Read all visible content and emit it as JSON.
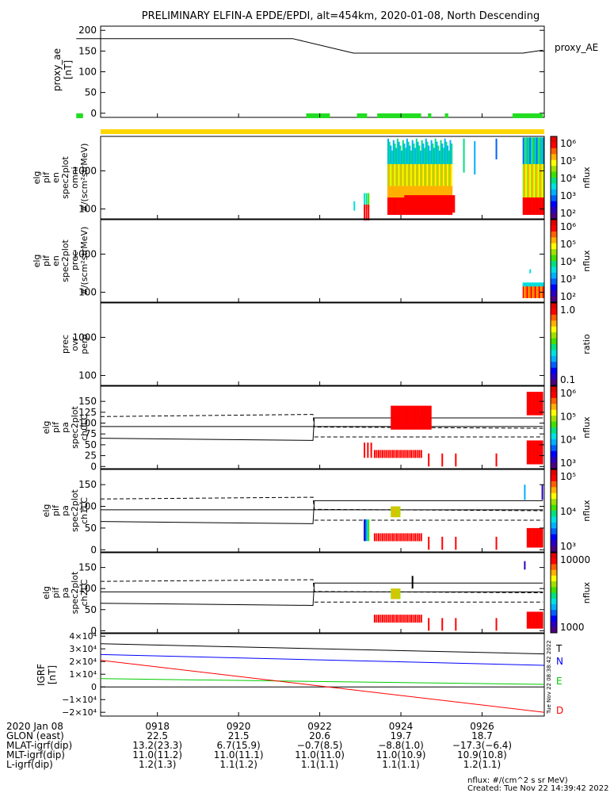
{
  "title": "PRELIMINARY ELFIN-A EPDE/EPDI, alt=454km, 2020-01-08, North Descending",
  "chart_data": [
    {
      "type": "line",
      "id": "proxy_ae",
      "ylabel": [
        "proxy_ae",
        "[nT]"
      ],
      "legend": "proxy_AE",
      "ylim": [
        -10,
        210
      ],
      "yticks": [
        0,
        50,
        100,
        150,
        200
      ],
      "x": [
        "09:16:00",
        "09:20:00",
        "09:21:20",
        "09:22:50",
        "09:27:00",
        "09:27:30"
      ],
      "values": [
        180,
        180,
        180,
        145,
        145,
        152
      ],
      "green_bar_intervals": [
        [
          "09:16:00",
          "09:16:10"
        ],
        [
          "09:21:40",
          "09:22:15"
        ],
        [
          "09:22:55",
          "09:23:10"
        ],
        [
          "09:23:25",
          "09:24:30"
        ],
        [
          "09:24:40",
          "09:24:45"
        ],
        [
          "09:25:05",
          "09:25:10"
        ],
        [
          "09:26:45",
          "09:27:30"
        ]
      ]
    },
    {
      "type": "heatmap",
      "id": "omni",
      "ylabel": [
        "elg",
        "pif",
        "en",
        "spec2plot",
        "omni",
        "#/(scm²strMeV)"
      ],
      "yscale": "log",
      "ylim": [
        55,
        8000
      ],
      "yticks": [
        100,
        1000
      ],
      "colorbar": {
        "label": "nflux",
        "ticks": [
          "10⁶",
          "10⁵",
          "10⁴",
          "10³",
          "10²"
        ]
      }
    },
    {
      "type": "heatmap",
      "id": "prec",
      "ylabel": [
        "elg",
        "pif",
        "en",
        "spec2plot",
        "prec",
        "#/(scm²strMeV)"
      ],
      "yscale": "log",
      "ylim": [
        55,
        8000
      ],
      "yticks": [
        100,
        1000
      ],
      "colorbar": {
        "label": "nflux",
        "ticks": [
          "10⁶",
          "10⁵",
          "10⁴",
          "10³",
          "10²"
        ]
      }
    },
    {
      "type": "heatmap",
      "id": "ratio",
      "ylabel": [
        "prec",
        "ovr",
        "perp"
      ],
      "yscale": "log",
      "ylim": [
        55,
        8000
      ],
      "yticks": [
        100,
        1000
      ],
      "colorbar": {
        "label": "ratio",
        "ticks": [
          "1.0",
          "0.1"
        ]
      }
    },
    {
      "type": "heatmap",
      "id": "ch0LC",
      "ylabel": [
        "elg",
        "pif",
        "pa",
        "spec2plot",
        "ch0LC"
      ],
      "ylim": [
        -5,
        185
      ],
      "yticks": [
        0,
        25,
        50,
        75,
        100,
        125,
        150
      ],
      "colorbar": {
        "label": "nflux",
        "ticks": [
          "10⁶",
          "10⁵",
          "10⁴",
          "10³"
        ]
      }
    },
    {
      "type": "heatmap",
      "id": "ch1LC",
      "ylabel": [
        "elg",
        "pif",
        "pa",
        "spec2plot",
        "ch1LC"
      ],
      "ylim": [
        -5,
        185
      ],
      "yticks": [
        0,
        50,
        100,
        150
      ],
      "colorbar": {
        "label": "nflux",
        "ticks": [
          "10⁵",
          "10⁴",
          "10³"
        ]
      }
    },
    {
      "type": "heatmap",
      "id": "ch2LC",
      "ylabel": [
        "elg",
        "pif",
        "pa",
        "spec2plot",
        "ch2LC"
      ],
      "ylim": [
        -5,
        185
      ],
      "yticks": [
        0,
        50,
        100,
        150
      ],
      "colorbar": {
        "label": "nflux",
        "ticks": [
          "10000",
          "1000"
        ]
      }
    },
    {
      "type": "line",
      "id": "igrf",
      "ylabel": [
        "IGRF",
        "[nT]"
      ],
      "ylim": [
        -23000,
        42000
      ],
      "yticks": [
        "−2×10⁴",
        "−1×10⁴",
        "0",
        "1×10⁴",
        "2×10⁴",
        "3×10⁴",
        "4×10⁴"
      ],
      "ytick_values": [
        -20000,
        -10000,
        0,
        10000,
        20000,
        30000,
        40000
      ],
      "x": [
        "09:16:40",
        "09:27:30"
      ],
      "series": [
        {
          "name": "T",
          "color": "#000000",
          "values": [
            34000,
            26000
          ]
        },
        {
          "name": "N",
          "color": "#0000ff",
          "values": [
            25500,
            17000
          ]
        },
        {
          "name": "E",
          "color": "#00cc00",
          "values": [
            6500,
            2000
          ]
        },
        {
          "name": "D",
          "color": "#ff0000",
          "values": [
            21000,
            -20000
          ]
        }
      ]
    }
  ],
  "time_axis": {
    "ticks": [
      "0918",
      "0920",
      "0922",
      "0924",
      "0926"
    ],
    "row_labels": [
      "2020 Jan 08",
      "GLON (east)",
      "MLAT-igrf(dip)",
      "MLT-igrf(dip)",
      "L-igrf(dip)"
    ],
    "rows": [
      [
        "22.5",
        "21.5",
        "20.6",
        "19.7",
        "18.7"
      ],
      [
        "13.2(23.3)",
        "6.7(15.9)",
        "−0.7(8.5)",
        "−8.8(1.0)",
        "−17.3(−6.4)"
      ],
      [
        "11.0(11.2)",
        "11.0(11.1)",
        "11.0(11.0)",
        "11.0(10.9)",
        "10.9(10.8)"
      ],
      [
        "1.2(1.3)",
        "1.1(1.2)",
        "1.1(1.1)",
        "1.1(1.1)",
        "1.2(1.1)"
      ]
    ]
  },
  "footer": [
    "nflux: #/(cm^2 s sr MeV)",
    "Created: Tue Nov 22 14:39:42 2022"
  ],
  "side_stamp": "Tue Nov 22 08:38:42 2022"
}
